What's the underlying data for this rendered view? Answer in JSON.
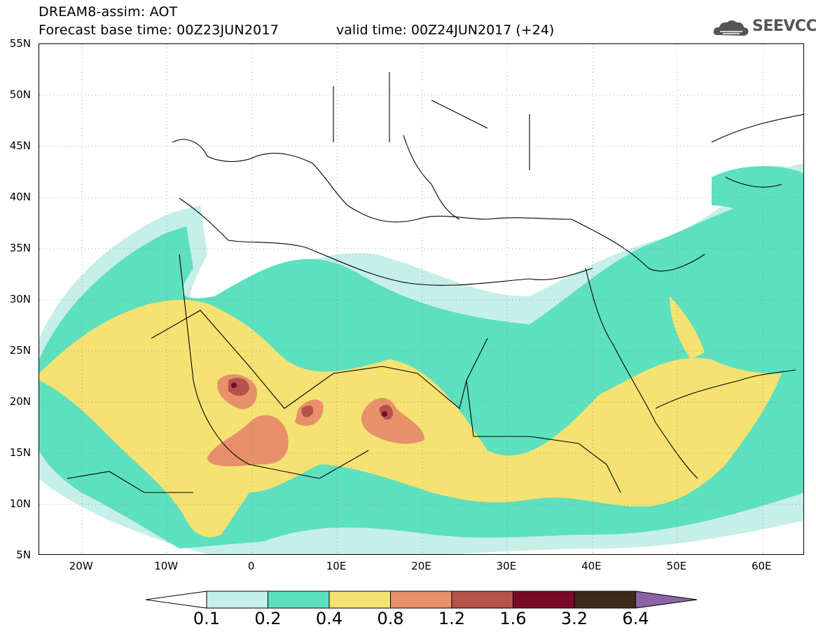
{
  "title": {
    "line1": "DREAM8-assim: AOT",
    "line2": "Forecast base time: 00Z23JUN2017",
    "valid": "valid time: 00Z24JUN2017 (+24)"
  },
  "logo": {
    "text": "SEEVCCC",
    "icon": "cloud-logo-icon"
  },
  "axes": {
    "lat_labels": [
      "55N",
      "50N",
      "45N",
      "40N",
      "35N",
      "30N",
      "25N",
      "20N",
      "15N",
      "10N",
      "5N"
    ],
    "lon_labels": [
      "20W",
      "10W",
      "0",
      "10E",
      "20E",
      "30E",
      "40E",
      "50E",
      "60E"
    ],
    "lat_range": [
      5,
      55
    ],
    "lon_range": [
      -25,
      65
    ],
    "grid": "dotted"
  },
  "colorbar": {
    "levels": [
      "0.1",
      "0.2",
      "0.4",
      "0.8",
      "1.2",
      "1.6",
      "3.2",
      "6.4"
    ],
    "colors": [
      "#ffffff",
      "#c6efe8",
      "#5de0be",
      "#f5e272",
      "#e8906a",
      "#b5524a",
      "#7a0a2a",
      "#3e2a18",
      "#8c64a6"
    ]
  },
  "colors": {
    "c1": "#c6efe8",
    "c2": "#5de0be",
    "c3": "#f5e272",
    "c4": "#e8906a",
    "c5": "#b5524a",
    "c6": "#7a0a2a"
  }
}
